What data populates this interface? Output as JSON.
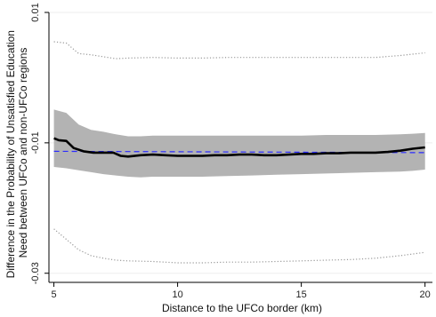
{
  "chart_data": {
    "type": "line",
    "title": "",
    "xlabel": "Distance to the UFCo border (km)",
    "ylabel_lines": [
      "Difference in the Probability of Unsatisfied Education",
      "Need between UFCo and non-UFCo regions"
    ],
    "xlim": [
      4.8,
      20.3
    ],
    "ylim": [
      -0.0314,
      0.01
    ],
    "x_ticks": [
      5,
      10,
      15,
      20
    ],
    "x_tick_labels": [
      "5",
      "10",
      "15",
      "20"
    ],
    "y_ticks": [
      0.01,
      -0.01,
      -0.03
    ],
    "y_tick_labels": [
      "0.01",
      "-0.01",
      "-0.03"
    ],
    "grid": "horizontal",
    "colors": {
      "estimate": "#000000",
      "ci_band": "#b3b3b3",
      "dotted_bounds": "#999999",
      "reference": "#2b2bff",
      "grid": "#eeeeee"
    },
    "series": [
      {
        "kind": "estimate_line",
        "x": [
          5,
          5.2,
          5.5,
          5.8,
          6.2,
          6.6,
          7,
          7.4,
          7.7,
          8,
          8.5,
          9,
          9.5,
          10,
          10.5,
          11,
          11.5,
          12,
          12.5,
          13,
          13.5,
          14,
          14.5,
          15,
          15.5,
          16,
          16.5,
          17,
          17.5,
          18,
          18.5,
          19,
          19.5,
          20
        ],
        "y": [
          -0.0093,
          -0.0096,
          -0.0097,
          -0.0108,
          -0.0113,
          -0.0115,
          -0.0115,
          -0.0115,
          -0.012,
          -0.0121,
          -0.0119,
          -0.0118,
          -0.0119,
          -0.012,
          -0.012,
          -0.012,
          -0.0119,
          -0.0119,
          -0.0118,
          -0.0118,
          -0.0119,
          -0.0119,
          -0.0118,
          -0.0117,
          -0.0117,
          -0.0116,
          -0.0116,
          -0.0115,
          -0.0115,
          -0.0115,
          -0.0114,
          -0.0112,
          -0.0109,
          -0.0107
        ]
      },
      {
        "kind": "ci_band",
        "x": [
          5,
          5.5,
          6,
          6.5,
          7,
          7.5,
          8,
          8.5,
          9,
          9.5,
          10,
          11,
          12,
          13,
          14,
          15,
          16,
          17,
          18,
          19,
          19.5,
          20
        ],
        "upper": [
          -0.0049,
          -0.0054,
          -0.0072,
          -0.008,
          -0.0083,
          -0.0087,
          -0.009,
          -0.009,
          -0.0089,
          -0.0089,
          -0.0089,
          -0.0089,
          -0.0089,
          -0.0089,
          -0.0089,
          -0.0089,
          -0.0088,
          -0.0088,
          -0.0088,
          -0.0087,
          -0.0086,
          -0.0085
        ],
        "lower": [
          -0.0137,
          -0.0139,
          -0.0142,
          -0.0145,
          -0.0148,
          -0.015,
          -0.0152,
          -0.0153,
          -0.0152,
          -0.0152,
          -0.0152,
          -0.0152,
          -0.0151,
          -0.015,
          -0.0149,
          -0.0148,
          -0.0147,
          -0.0146,
          -0.0145,
          -0.0144,
          -0.0143,
          -0.0141
        ]
      },
      {
        "kind": "dotted_upper",
        "x": [
          5,
          5.5,
          6,
          6.5,
          7,
          7.5,
          8,
          9,
          10,
          11,
          12,
          13,
          14,
          15,
          16,
          17,
          18,
          19,
          20
        ],
        "y": [
          0.0055,
          0.0053,
          0.0037,
          0.0035,
          0.0032,
          0.0029,
          0.003,
          0.0031,
          0.003,
          0.003,
          0.0031,
          0.0031,
          0.0031,
          0.0031,
          0.0031,
          0.0031,
          0.0031,
          0.0034,
          0.0038
        ]
      },
      {
        "kind": "dotted_lower",
        "x": [
          5,
          5.5,
          6,
          6.5,
          7,
          7.5,
          8,
          9,
          10,
          11,
          12,
          13,
          14,
          15,
          16,
          17,
          18,
          19,
          20
        ],
        "y": [
          -0.0232,
          -0.0248,
          -0.0264,
          -0.0273,
          -0.0277,
          -0.028,
          -0.0281,
          -0.0282,
          -0.0284,
          -0.0284,
          -0.0283,
          -0.0283,
          -0.0282,
          -0.0281,
          -0.028,
          -0.0279,
          -0.0277,
          -0.0273,
          -0.0268
        ]
      },
      {
        "kind": "reference_line",
        "x": [
          5,
          20
        ],
        "y": [
          -0.0113,
          -0.0115
        ]
      }
    ]
  }
}
